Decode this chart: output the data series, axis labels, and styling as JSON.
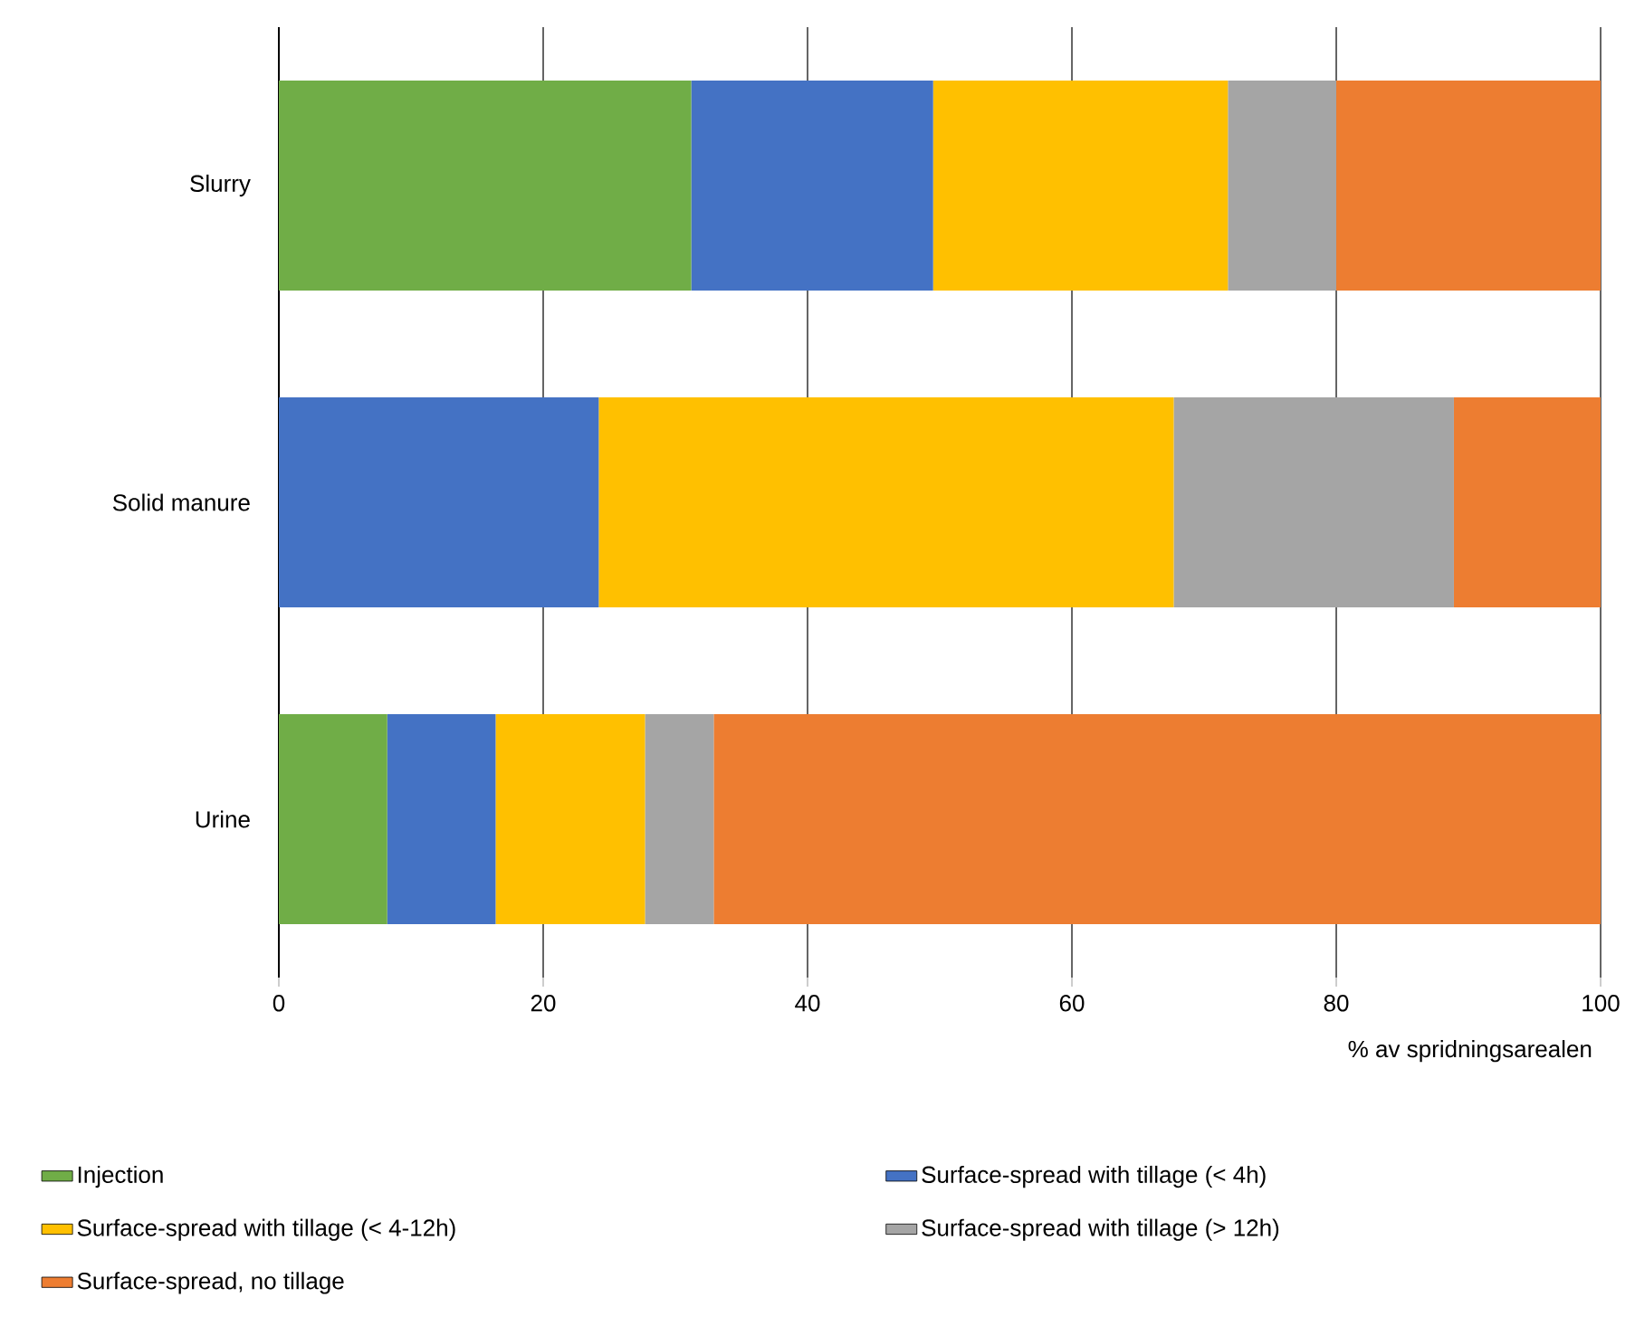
{
  "chart_data": {
    "type": "bar",
    "orientation": "horizontal",
    "stacked": true,
    "categories": [
      "Slurry",
      "Solid manure",
      "Urine"
    ],
    "series": [
      {
        "name": "Injection",
        "color": "#70ad47",
        "values": [
          31.2,
          0,
          8.2
        ]
      },
      {
        "name": "Surface-spread with tillage (< 4h)",
        "color": "#4472c4",
        "values": [
          18.3,
          24.2,
          8.2
        ]
      },
      {
        "name": "Surface-spread with tillage (< 4-12h)",
        "color": "#ffc000",
        "values": [
          22.3,
          43.5,
          11.3
        ]
      },
      {
        "name": "Surface-spread with tillage (> 12h)",
        "color": "#a5a5a5",
        "values": [
          8.2,
          21.2,
          5.2
        ]
      },
      {
        "name": "Surface-spread, no tillage",
        "color": "#ed7d31",
        "values": [
          20.0,
          11.1,
          67.1
        ]
      }
    ],
    "xlim": [
      0,
      100
    ],
    "xticks": [
      0,
      20,
      40,
      60,
      80,
      100
    ],
    "xlabel": "% av spridningsarealen",
    "grid": "x",
    "legend": "bottom"
  }
}
